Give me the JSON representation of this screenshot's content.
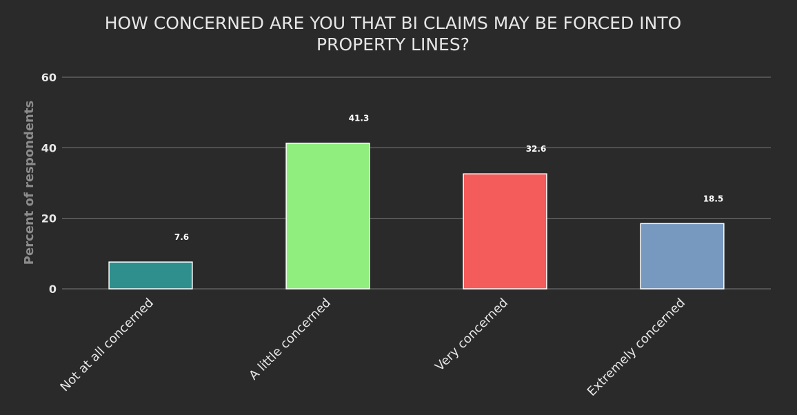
{
  "chart_data": {
    "type": "bar",
    "title_lines": [
      "HOW CONCERNED ARE YOU THAT BI CLAIMS MAY BE FORCED INTO",
      "PROPERTY LINES?"
    ],
    "xlabel": "",
    "ylabel": "Percent of respondents",
    "ylim": [
      0,
      60
    ],
    "yticks": [
      0,
      20,
      40,
      60
    ],
    "grid": true,
    "categories": [
      "Not at all concerned",
      "A little concerned",
      "Very concerned",
      "Extremely concerned"
    ],
    "values": [
      7.6,
      41.3,
      32.6,
      18.5
    ],
    "data_labels": [
      "7.6",
      "41.3",
      "32.6",
      "18.5"
    ],
    "colors": [
      "#2e8f8c",
      "#90ee7e",
      "#f45b5b",
      "#7798bf"
    ]
  }
}
